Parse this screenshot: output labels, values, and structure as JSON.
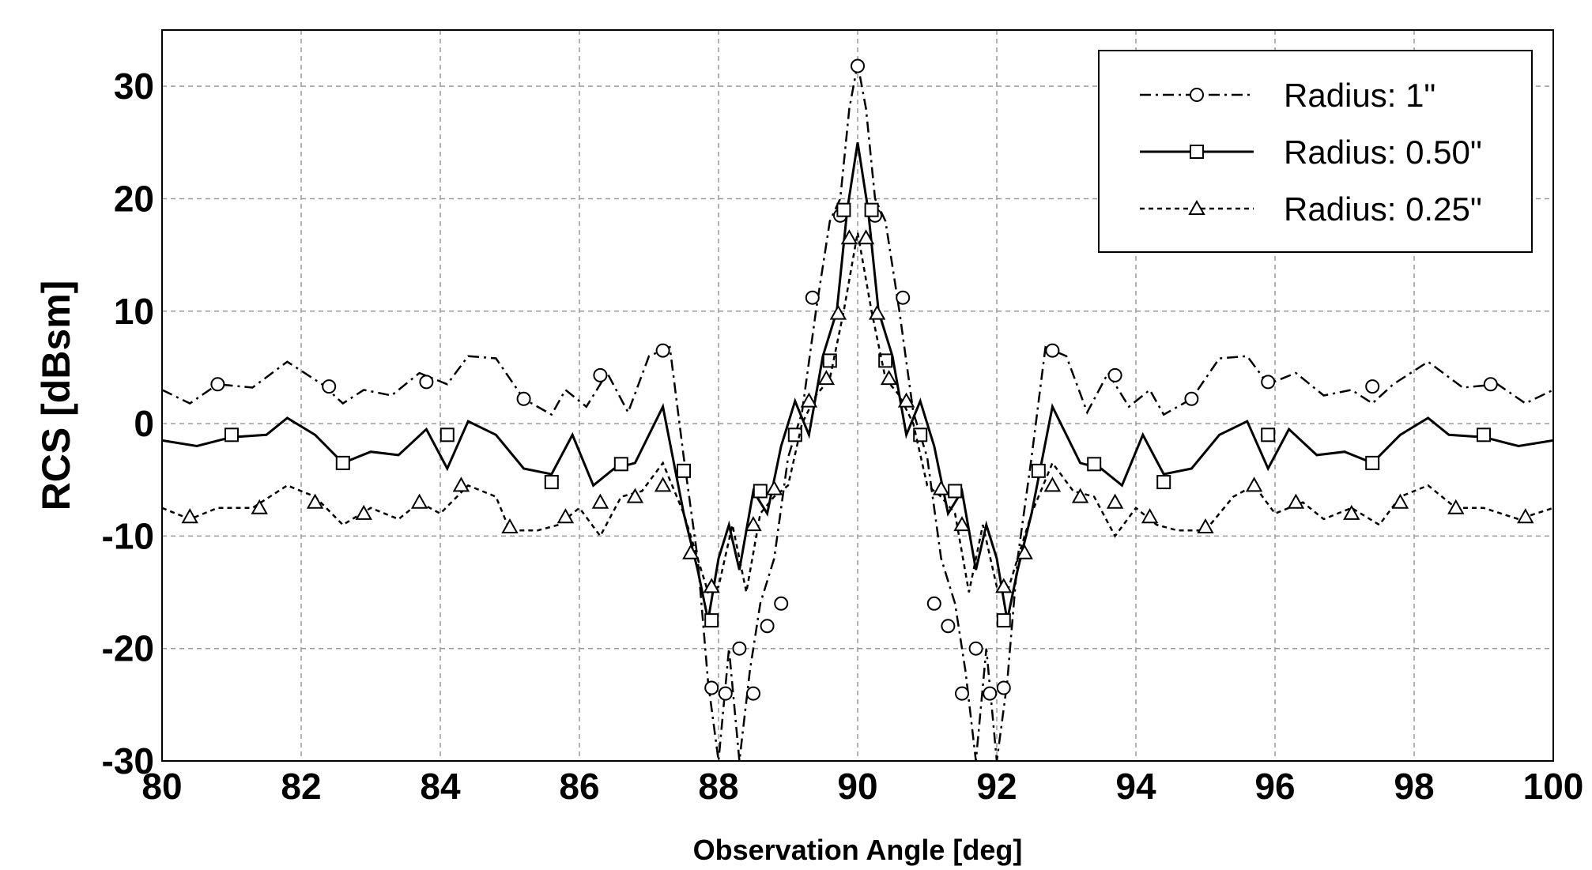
{
  "chart_data": {
    "type": "line",
    "title": "",
    "xlabel": "Observation Angle [deg]",
    "ylabel": "RCS [dBsm]",
    "xlim": [
      80,
      100
    ],
    "ylim": [
      -30,
      35
    ],
    "xticks": [
      80,
      82,
      84,
      86,
      88,
      90,
      92,
      94,
      96,
      98,
      100
    ],
    "yticks": [
      -30,
      -20,
      -10,
      0,
      10,
      20,
      30
    ],
    "xtick_labels": [
      "80",
      "82",
      "84",
      "86",
      "88",
      "90",
      "92",
      "94",
      "96",
      "98",
      "100"
    ],
    "ytick_labels": [
      "-30",
      "-20",
      "-10",
      "0",
      "10",
      "20",
      "30"
    ],
    "grid": true,
    "legend_position": "top-right",
    "series": [
      {
        "name": "Radius: 1\"",
        "linestyle": "dashdot",
        "marker": "circle",
        "color": "#000000",
        "x": [
          80,
          80.4,
          80.8,
          81.3,
          81.8,
          82.3,
          82.6,
          82.9,
          83.3,
          83.7,
          84.1,
          84.4,
          84.8,
          85.2,
          85.6,
          85.8,
          86.1,
          86.4,
          86.7,
          87.0,
          87.3,
          87.5,
          87.7,
          87.85,
          88.0,
          88.15,
          88.3,
          88.45,
          88.6,
          88.8,
          89.0,
          89.2,
          89.4,
          89.6,
          89.75,
          89.88,
          90.0,
          90.12,
          90.25,
          90.4,
          90.6,
          90.8,
          91.0,
          91.2,
          91.4,
          91.55,
          91.7,
          91.85,
          92.0,
          92.15,
          92.3,
          92.5,
          92.7,
          93.0,
          93.3,
          93.6,
          93.9,
          94.2,
          94.4,
          94.8,
          95.2,
          95.6,
          95.9,
          96.3,
          96.7,
          97.1,
          97.4,
          97.7,
          98.2,
          98.7,
          99.2,
          99.6,
          100
        ],
        "y": [
          3,
          1.8,
          3.5,
          3.2,
          5.5,
          3.5,
          1.8,
          3.0,
          2.5,
          4.5,
          3.5,
          6.0,
          5.8,
          2.2,
          0.8,
          3.0,
          1.5,
          4.5,
          1.0,
          6.0,
          6.8,
          -3.0,
          -12.0,
          -23.0,
          -33.0,
          -20.0,
          -30.0,
          -22.0,
          -16.0,
          -12.0,
          -3.0,
          1.0,
          10.0,
          18.0,
          20.0,
          28.0,
          32.0,
          28.0,
          20.0,
          18.0,
          10.0,
          1.0,
          -3.0,
          -12.0,
          -16.0,
          -22.0,
          -30.0,
          -20.0,
          -33.0,
          -23.0,
          -12.0,
          -3.0,
          6.8,
          6.0,
          1.0,
          4.5,
          1.5,
          3.0,
          0.8,
          2.2,
          5.8,
          6.0,
          3.5,
          4.5,
          2.5,
          3.0,
          1.8,
          3.5,
          5.5,
          3.2,
          3.5,
          1.8,
          3.0
        ],
        "marker_x": [
          80.8,
          82.4,
          83.8,
          85.2,
          86.3,
          87.2,
          87.9,
          88.1,
          88.3,
          88.5,
          88.7,
          88.9,
          89.35,
          89.75,
          90.0,
          90.25,
          90.65,
          91.1,
          91.3,
          91.5,
          91.7,
          91.9,
          92.1,
          92.8,
          93.7,
          94.8,
          95.9,
          97.4,
          99.1
        ],
        "marker_y": [
          3.5,
          3.3,
          3.7,
          2.2,
          4.3,
          6.5,
          -23.5,
          -24.0,
          -20.0,
          -24.0,
          -18.0,
          -16.0,
          11.2,
          18.5,
          31.8,
          18.5,
          11.2,
          -16.0,
          -18.0,
          -24.0,
          -20.0,
          -24.0,
          -23.5,
          6.5,
          4.3,
          2.2,
          3.7,
          3.3,
          3.5
        ]
      },
      {
        "name": "Radius: 0.50\"",
        "linestyle": "solid",
        "marker": "square",
        "color": "#000000",
        "x": [
          80,
          80.5,
          81.0,
          81.5,
          81.8,
          82.2,
          82.6,
          83.0,
          83.4,
          83.8,
          84.1,
          84.4,
          84.8,
          85.2,
          85.6,
          85.9,
          86.2,
          86.5,
          86.8,
          87.2,
          87.5,
          87.7,
          87.85,
          88.0,
          88.15,
          88.3,
          88.5,
          88.7,
          88.9,
          89.1,
          89.3,
          89.5,
          89.7,
          89.85,
          90.0,
          90.15,
          90.3,
          90.5,
          90.7,
          90.9,
          91.1,
          91.3,
          91.5,
          91.7,
          91.85,
          92.0,
          92.15,
          92.3,
          92.5,
          92.8,
          93.2,
          93.5,
          93.8,
          94.1,
          94.4,
          94.8,
          95.2,
          95.6,
          95.9,
          96.2,
          96.6,
          97.0,
          97.4,
          97.8,
          98.2,
          98.5,
          99.0,
          99.5,
          100
        ],
        "y": [
          -1.5,
          -2.0,
          -1.2,
          -1.0,
          0.5,
          -1.0,
          -3.5,
          -2.5,
          -2.8,
          -0.5,
          -4.0,
          0.2,
          -1.0,
          -4.0,
          -4.5,
          -1.0,
          -5.5,
          -4.0,
          -3.5,
          1.5,
          -8.0,
          -13.0,
          -17.5,
          -12.0,
          -9.0,
          -13.0,
          -6.0,
          -8.0,
          -2.0,
          2.0,
          -1.0,
          6.0,
          10.0,
          19.0,
          25.0,
          19.0,
          10.0,
          6.0,
          -1.0,
          2.0,
          -2.0,
          -8.0,
          -6.0,
          -13.0,
          -9.0,
          -12.0,
          -17.5,
          -13.0,
          -8.0,
          1.5,
          -3.5,
          -4.0,
          -5.5,
          -1.0,
          -4.5,
          -4.0,
          -1.0,
          0.2,
          -4.0,
          -0.5,
          -2.8,
          -2.5,
          -3.5,
          -1.0,
          0.5,
          -1.0,
          -1.2,
          -2.0,
          -1.5
        ],
        "marker_x": [
          81.0,
          82.6,
          84.1,
          85.6,
          86.6,
          87.5,
          87.9,
          88.6,
          89.1,
          89.6,
          89.8,
          90.2,
          90.4,
          90.9,
          91.4,
          92.1,
          92.6,
          93.4,
          94.4,
          95.9,
          97.4,
          99.0
        ],
        "marker_y": [
          -1.0,
          -3.5,
          -1.0,
          -5.2,
          -3.6,
          -4.2,
          -17.5,
          -6.0,
          -1.0,
          5.6,
          19.0,
          19.0,
          5.6,
          -1.0,
          -6.0,
          -17.5,
          -4.2,
          -3.6,
          -5.2,
          -1.0,
          -3.5,
          -1.0
        ]
      },
      {
        "name": "Radius: 0.25\"",
        "linestyle": "dotted",
        "marker": "triangle",
        "color": "#000000",
        "x": [
          80,
          80.4,
          80.8,
          81.3,
          81.8,
          82.2,
          82.6,
          83.0,
          83.4,
          83.7,
          84.0,
          84.4,
          84.8,
          85.0,
          85.4,
          85.7,
          86.0,
          86.3,
          86.6,
          86.9,
          87.2,
          87.5,
          87.7,
          87.85,
          88.0,
          88.2,
          88.4,
          88.6,
          88.8,
          89.0,
          89.2,
          89.4,
          89.6,
          89.8,
          90.0,
          90.2,
          90.4,
          90.6,
          90.8,
          91.0,
          91.2,
          91.4,
          91.6,
          91.8,
          92.0,
          92.15,
          92.3,
          92.5,
          92.8,
          93.1,
          93.4,
          93.7,
          94.0,
          94.3,
          94.6,
          95.0,
          95.4,
          95.7,
          96.0,
          96.4,
          96.7,
          97.1,
          97.5,
          97.8,
          98.2,
          98.6,
          99.0,
          99.5,
          100
        ],
        "y": [
          -7.5,
          -8.5,
          -7.5,
          -7.5,
          -5.5,
          -6.5,
          -9.0,
          -7.5,
          -8.5,
          -7.0,
          -8.0,
          -5.5,
          -6.5,
          -9.5,
          -9.5,
          -9.0,
          -7.5,
          -10.0,
          -6.5,
          -6.0,
          -3.5,
          -8.0,
          -12.0,
          -15.0,
          -14.5,
          -9.0,
          -15.0,
          -8.0,
          -6.5,
          -5.5,
          0.0,
          2.5,
          4.0,
          10.0,
          17.0,
          10.0,
          4.0,
          2.5,
          0.0,
          -5.5,
          -6.5,
          -8.0,
          -15.0,
          -9.0,
          -14.5,
          -15.0,
          -12.0,
          -8.0,
          -3.5,
          -6.0,
          -6.5,
          -10.0,
          -7.5,
          -9.0,
          -9.5,
          -9.5,
          -6.5,
          -5.5,
          -8.0,
          -7.0,
          -8.5,
          -7.5,
          -9.0,
          -6.5,
          -5.5,
          -7.5,
          -7.5,
          -8.5,
          -7.5
        ],
        "marker_x": [
          80.4,
          81.4,
          82.2,
          82.9,
          83.7,
          84.3,
          85.0,
          85.8,
          86.3,
          86.8,
          87.2,
          87.6,
          87.9,
          88.5,
          88.8,
          89.3,
          89.55,
          89.72,
          89.88,
          90.12,
          90.28,
          90.45,
          90.7,
          91.2,
          91.5,
          92.1,
          92.4,
          92.8,
          93.2,
          93.7,
          94.2,
          95.0,
          95.7,
          96.3,
          97.1,
          97.8,
          98.6,
          99.6
        ],
        "marker_y": [
          -8.3,
          -7.5,
          -7.0,
          -8.0,
          -7.0,
          -5.5,
          -9.2,
          -8.3,
          -7.0,
          -6.5,
          -5.5,
          -11.5,
          -14.5,
          -9.0,
          -5.8,
          2.0,
          4.0,
          9.8,
          16.5,
          16.5,
          9.8,
          4.0,
          2.0,
          -5.8,
          -9.0,
          -14.5,
          -11.5,
          -5.5,
          -6.5,
          -7.0,
          -8.3,
          -9.2,
          -5.5,
          -7.0,
          -8.0,
          -7.0,
          -7.5,
          -8.3
        ]
      }
    ]
  }
}
